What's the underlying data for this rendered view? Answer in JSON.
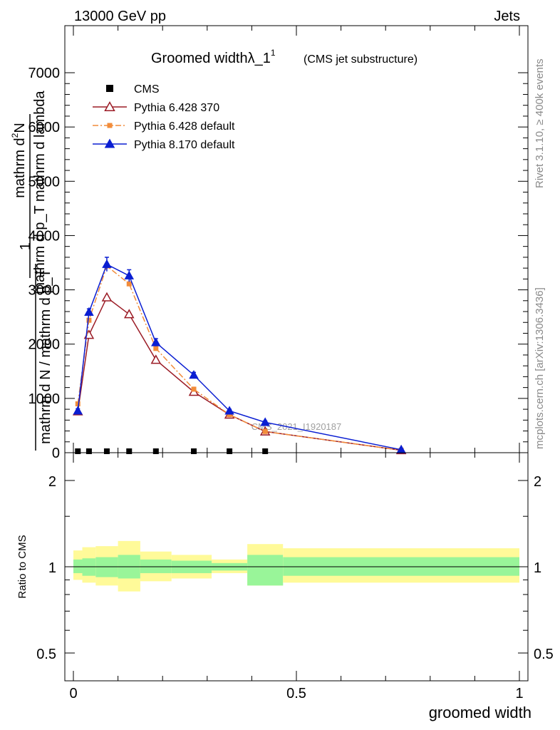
{
  "header": {
    "left": "13000 GeV pp",
    "right": "Jets"
  },
  "side": {
    "top": "Rivet 3.1.10, ≥ 400k events",
    "bottom": "mcplots.cern.ch [arXiv:1306.3436]"
  },
  "watermark": "CMS_2021_I1920187",
  "colors": {
    "cms": "#000000",
    "p6_370": "#9b1b25",
    "p6_def": "#f28c3a",
    "p8": "#0a1ed2",
    "band_inner": "#99f599",
    "band_outer": "#fffa99"
  },
  "chart_data": [
    {
      "type": "line",
      "title": "Groomed widthλ_1",
      "title_sup": "1",
      "title_suffix": "(CMS jet substructure)",
      "ylabel_numer": "mathrm d^{2}N",
      "ylabel_numer_text": "mathrm d",
      "ylabel_numer_sup": "2",
      "ylabel_numer_tail": "N",
      "ylabel_denom": "mathrm d p_T mathrm d lambda",
      "ylabel_prefix_num": "1",
      "ylabel_prefix_den": "mathrm d N / mathrm d p_T",
      "xlim": [
        0,
        1
      ],
      "ylim": [
        0,
        7000
      ],
      "yticks": [
        0,
        1000,
        2000,
        3000,
        4000,
        5000,
        6000,
        7000
      ],
      "ytick_labels": [
        "0",
        "1000",
        "2000",
        "3000",
        "4000",
        "5000",
        "6000",
        "7000"
      ],
      "legend_position": "top-left",
      "series": [
        {
          "name": "CMS",
          "key": "cms",
          "marker": "square",
          "x": [
            0.01,
            0.035,
            0.075,
            0.125,
            0.185,
            0.27,
            0.35,
            0.43
          ],
          "y": [
            0,
            0,
            0,
            0,
            0,
            0,
            0,
            0
          ]
        },
        {
          "name": "Pythia 6.428 370",
          "key": "p6_370",
          "marker": "open-triangle",
          "dash": "",
          "x": [
            0.01,
            0.035,
            0.075,
            0.125,
            0.185,
            0.27,
            0.35,
            0.43,
            0.735
          ],
          "y": [
            760,
            2170,
            2860,
            2550,
            1710,
            1120,
            700,
            390,
            45
          ]
        },
        {
          "name": "Pythia 6.428 default",
          "key": "p6_def",
          "marker": "square",
          "dash": "8,3,2,3",
          "x": [
            0.01,
            0.035,
            0.075,
            0.125,
            0.185,
            0.27,
            0.35,
            0.43,
            0.735
          ],
          "y": [
            900,
            2440,
            3440,
            3110,
            1920,
            1170,
            700,
            390,
            45
          ]
        },
        {
          "name": "Pythia 8.170 default",
          "key": "p8",
          "marker": "filled-triangle",
          "dash": "",
          "x": [
            0.01,
            0.035,
            0.075,
            0.125,
            0.185,
            0.27,
            0.35,
            0.43,
            0.735
          ],
          "y": [
            770,
            2590,
            3470,
            3260,
            2030,
            1430,
            770,
            560,
            55
          ],
          "yerr": [
            40,
            60,
            130,
            110,
            70,
            50,
            30,
            25,
            10
          ]
        }
      ]
    },
    {
      "type": "area",
      "ylabel": "Ratio to CMS",
      "xlabel": "groomed width",
      "xlim": [
        0,
        1
      ],
      "ylim": [
        0.4,
        2.3
      ],
      "y_log": true,
      "yticks": [
        0.5,
        1,
        2
      ],
      "ytick_labels": [
        "0.5",
        "1",
        "2"
      ],
      "xticks": [
        0,
        0.5,
        1
      ],
      "xtick_labels": [
        "0",
        "0.5",
        "1"
      ],
      "bins": [
        {
          "x": [
            0.0,
            0.02
          ],
          "inner": [
            0.95,
            1.06
          ],
          "outer": [
            0.9,
            1.14
          ]
        },
        {
          "x": [
            0.02,
            0.05
          ],
          "inner": [
            0.93,
            1.07
          ],
          "outer": [
            0.88,
            1.17
          ]
        },
        {
          "x": [
            0.05,
            0.1
          ],
          "inner": [
            0.92,
            1.08
          ],
          "outer": [
            0.86,
            1.18
          ]
        },
        {
          "x": [
            0.1,
            0.15
          ],
          "inner": [
            0.91,
            1.1
          ],
          "outer": [
            0.82,
            1.23
          ]
        },
        {
          "x": [
            0.15,
            0.22
          ],
          "inner": [
            0.95,
            1.06
          ],
          "outer": [
            0.89,
            1.13
          ]
        },
        {
          "x": [
            0.22,
            0.31
          ],
          "inner": [
            0.95,
            1.05
          ],
          "outer": [
            0.91,
            1.1
          ]
        },
        {
          "x": [
            0.31,
            0.39
          ],
          "inner": [
            0.97,
            1.03
          ],
          "outer": [
            0.95,
            1.06
          ]
        },
        {
          "x": [
            0.39,
            0.47
          ],
          "inner": [
            0.86,
            1.1
          ],
          "outer": [
            0.86,
            1.2
          ]
        },
        {
          "x": [
            0.47,
            1.0
          ],
          "inner": [
            0.93,
            1.08
          ],
          "outer": [
            0.88,
            1.16
          ]
        }
      ]
    }
  ]
}
